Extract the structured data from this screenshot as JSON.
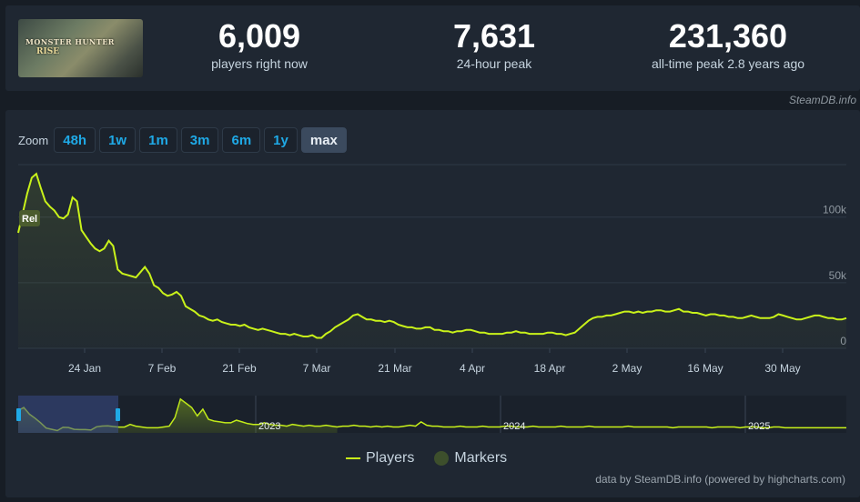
{
  "game": {
    "cover_title": "MONSTER HUNTER",
    "cover_sub": "RISE"
  },
  "stats": [
    {
      "value": "6,009",
      "label": "players right now"
    },
    {
      "value": "7,631",
      "label": "24-hour peak"
    },
    {
      "value": "231,360",
      "label": "all-time peak 2.8 years ago"
    }
  ],
  "credit_top": "SteamDB.info",
  "zoom": {
    "label": "Zoom",
    "buttons": [
      "48h",
      "1w",
      "1m",
      "3m",
      "6m",
      "1y",
      "max"
    ],
    "active": "max"
  },
  "marker_label": "Rel",
  "legend": {
    "players": "Players",
    "markers": "Markers"
  },
  "footer": "data by SteamDB.info (powered by highcharts.com)",
  "colors": {
    "line": "#c9f21a",
    "marker": "#3d4f2c",
    "accent": "#1fa9e6"
  },
  "chart_data": {
    "type": "line",
    "series": [
      {
        "name": "Players",
        "values_k": [
          88,
          103,
          118,
          130,
          133,
          122,
          112,
          108,
          105,
          100,
          99,
          102,
          115,
          112,
          90,
          85,
          80,
          76,
          74,
          76,
          82,
          78,
          60,
          57,
          56,
          55,
          54,
          58,
          62,
          57,
          48,
          46,
          42,
          40,
          41,
          43,
          40,
          32,
          30,
          28,
          25,
          24,
          22,
          21,
          22,
          20,
          19,
          18,
          18,
          17,
          18,
          16,
          15,
          14,
          15,
          14,
          13,
          12,
          11,
          11,
          10,
          11,
          10,
          9,
          9,
          10,
          8,
          8,
          11,
          13,
          16,
          18,
          20,
          22,
          25,
          26,
          24,
          22,
          22,
          21,
          21,
          20,
          21,
          20,
          18,
          17,
          16,
          16,
          15,
          15,
          16,
          16,
          14,
          14,
          13,
          13,
          12,
          13,
          13,
          14,
          14,
          13,
          12,
          12,
          11,
          11,
          11,
          11,
          12,
          12,
          13,
          12,
          12,
          11,
          11,
          11,
          11,
          12,
          12,
          11,
          11,
          10,
          11,
          12,
          15,
          18,
          21,
          23,
          24,
          24,
          25,
          25,
          26,
          27,
          28,
          28,
          27,
          28,
          27,
          28,
          28,
          29,
          29,
          28,
          28,
          29,
          30,
          28,
          28,
          27,
          27,
          26,
          25,
          26,
          26,
          25,
          25,
          24,
          24,
          23,
          23,
          24,
          25,
          24,
          23,
          23,
          23,
          24,
          26,
          25,
          24,
          23,
          22,
          22,
          23,
          24,
          25,
          25,
          24,
          23,
          23,
          22,
          22,
          23
        ]
      }
    ],
    "x_ticks": [
      "24 Jan",
      "7 Feb",
      "21 Feb",
      "7 Mar",
      "21 Mar",
      "4 Apr",
      "18 Apr",
      "2 May",
      "16 May",
      "30 May"
    ],
    "y_ticks": [
      "0",
      "50k",
      "100k"
    ],
    "ylim": [
      0,
      140
    ],
    "grid": true,
    "navigator_years": [
      "2023",
      "2024",
      "2025"
    ]
  }
}
